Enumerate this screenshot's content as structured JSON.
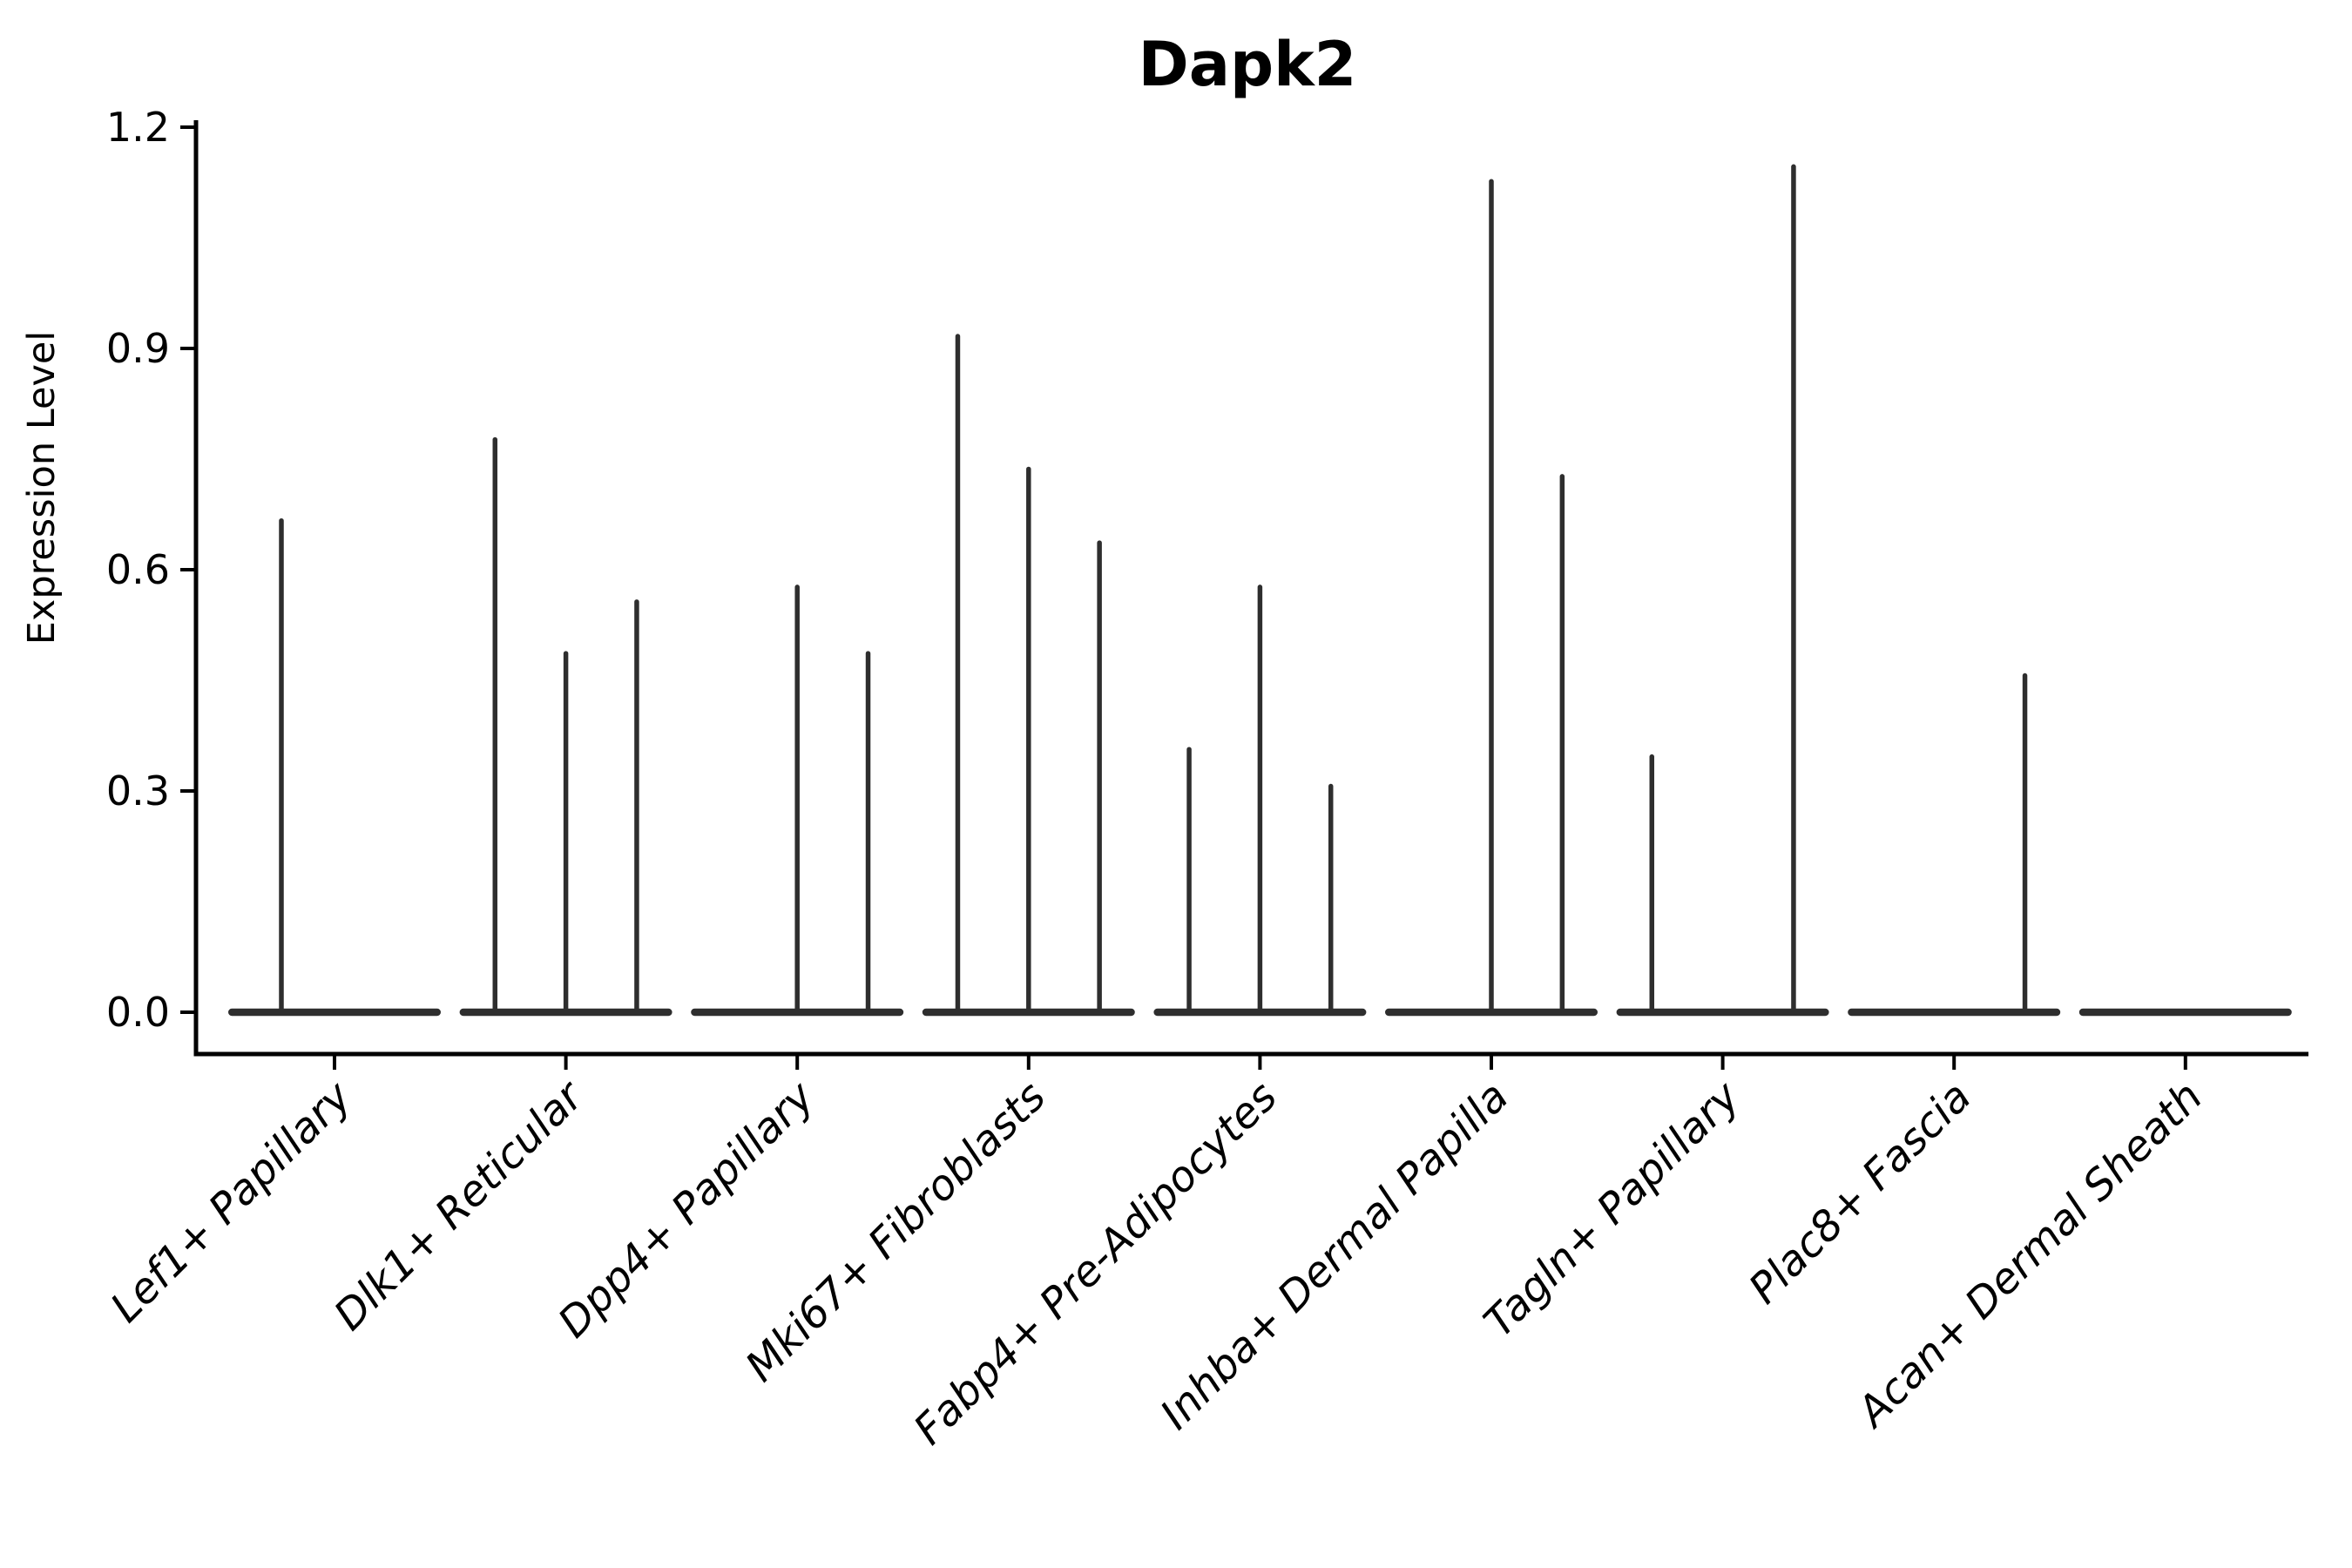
{
  "figure": {
    "title": "Dapk2"
  },
  "chart_data": {
    "type": "violin",
    "title": "Dapk2",
    "xlabel": "",
    "ylabel": "Expression Level",
    "ylim": [
      0,
      1.2
    ],
    "yticks": [
      0,
      0.3,
      0.6,
      0.9,
      1.2
    ],
    "ytick_labels": [
      "0.0",
      "0.3",
      "0.6",
      "0.9",
      "1.2"
    ],
    "grid": false,
    "legend_position": "none",
    "x_tick_rotation": 45,
    "x_tick_style": "italic",
    "categories": [
      "Lef1+ Papillary",
      "Dlk1+ Reticular",
      "Dpp4+ Papillary",
      "Mki67+ Fibroblasts",
      "Fabp4+ Pre-Adipocytes",
      "Inhba+ Dermal Papilla",
      "Tagln+ Papillary",
      "Plac8+ Fascia",
      "Acan+ Dermal Sheath"
    ],
    "violins": [
      {
        "category": "Lef1+ Papillary",
        "groups": 2,
        "spikes": [
          {
            "group": 1,
            "max": 0.67
          }
        ]
      },
      {
        "category": "Dlk1+ Reticular",
        "groups": 3,
        "spikes": [
          {
            "group": 1,
            "max": 0.78
          },
          {
            "group": 2,
            "max": 0.49
          },
          {
            "group": 3,
            "max": 0.56
          }
        ]
      },
      {
        "category": "Dpp4+ Papillary",
        "groups": 3,
        "spikes": [
          {
            "group": 2,
            "max": 0.58
          },
          {
            "group": 3,
            "max": 0.49
          }
        ]
      },
      {
        "category": "Mki67+ Fibroblasts",
        "groups": 3,
        "spikes": [
          {
            "group": 1,
            "max": 0.92
          },
          {
            "group": 2,
            "max": 0.74
          },
          {
            "group": 3,
            "max": 0.64
          }
        ]
      },
      {
        "category": "Fabp4+ Pre-Adipocytes",
        "groups": 3,
        "spikes": [
          {
            "group": 1,
            "max": 0.36
          },
          {
            "group": 2,
            "max": 0.58
          },
          {
            "group": 3,
            "max": 0.31
          }
        ]
      },
      {
        "category": "Inhba+ Dermal Papilla",
        "groups": 3,
        "spikes": [
          {
            "group": 2,
            "max": 1.13
          },
          {
            "group": 3,
            "max": 0.73
          }
        ]
      },
      {
        "category": "Tagln+ Papillary",
        "groups": 3,
        "spikes": [
          {
            "group": 1,
            "max": 0.35
          },
          {
            "group": 3,
            "max": 1.15
          }
        ]
      },
      {
        "category": "Plac8+ Fascia",
        "groups": 3,
        "spikes": [
          {
            "group": 3,
            "max": 0.46
          }
        ]
      },
      {
        "category": "Acan+ Dermal Sheath",
        "groups": 3,
        "spikes": []
      }
    ],
    "colors": {
      "violin": "#2e2e2e",
      "axis": "#000000",
      "text": "#000000",
      "background": "#ffffff"
    }
  }
}
